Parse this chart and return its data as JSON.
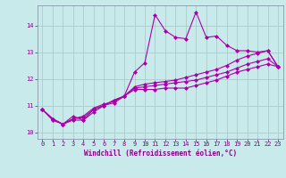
{
  "xlabel": "Windchill (Refroidissement éolien,°C)",
  "ylabel": "",
  "bg_color": "#c8eaea",
  "line_color": "#aa00aa",
  "grid_color": "#aacccc",
  "xlim": [
    -0.5,
    23.5
  ],
  "ylim": [
    9.75,
    14.75
  ],
  "xticks": [
    0,
    1,
    2,
    3,
    4,
    5,
    6,
    7,
    8,
    9,
    10,
    11,
    12,
    13,
    14,
    15,
    16,
    17,
    18,
    19,
    20,
    21,
    22,
    23
  ],
  "yticks": [
    10,
    11,
    12,
    13,
    14
  ],
  "series": [
    [
      10.85,
      10.45,
      10.3,
      10.45,
      10.45,
      10.75,
      11.0,
      11.2,
      11.35,
      12.25,
      12.6,
      14.4,
      13.8,
      13.55,
      13.5,
      14.5,
      13.55,
      13.6,
      13.25,
      13.05,
      13.05,
      13.0,
      13.05,
      12.45
    ],
    [
      10.85,
      10.5,
      10.3,
      10.6,
      10.45,
      10.85,
      11.0,
      11.1,
      11.35,
      11.6,
      11.6,
      11.6,
      11.65,
      11.65,
      11.65,
      11.75,
      11.85,
      11.95,
      12.1,
      12.25,
      12.35,
      12.45,
      12.55,
      12.45
    ],
    [
      10.85,
      10.5,
      10.3,
      10.5,
      10.6,
      10.9,
      11.05,
      11.15,
      11.35,
      11.65,
      11.7,
      11.75,
      11.8,
      11.85,
      11.9,
      11.95,
      12.05,
      12.15,
      12.25,
      12.4,
      12.55,
      12.65,
      12.75,
      12.45
    ],
    [
      10.85,
      10.5,
      10.3,
      10.5,
      10.55,
      10.85,
      11.0,
      11.2,
      11.35,
      11.7,
      11.8,
      11.85,
      11.9,
      11.95,
      12.05,
      12.15,
      12.25,
      12.35,
      12.5,
      12.7,
      12.85,
      12.95,
      13.05,
      12.45
    ]
  ],
  "marker": "D",
  "marker_size": 2.0,
  "line_width": 0.8,
  "label_fontsize": 5.5,
  "tick_fontsize": 5.0,
  "spine_color": "#8899aa",
  "text_color": "#880088"
}
